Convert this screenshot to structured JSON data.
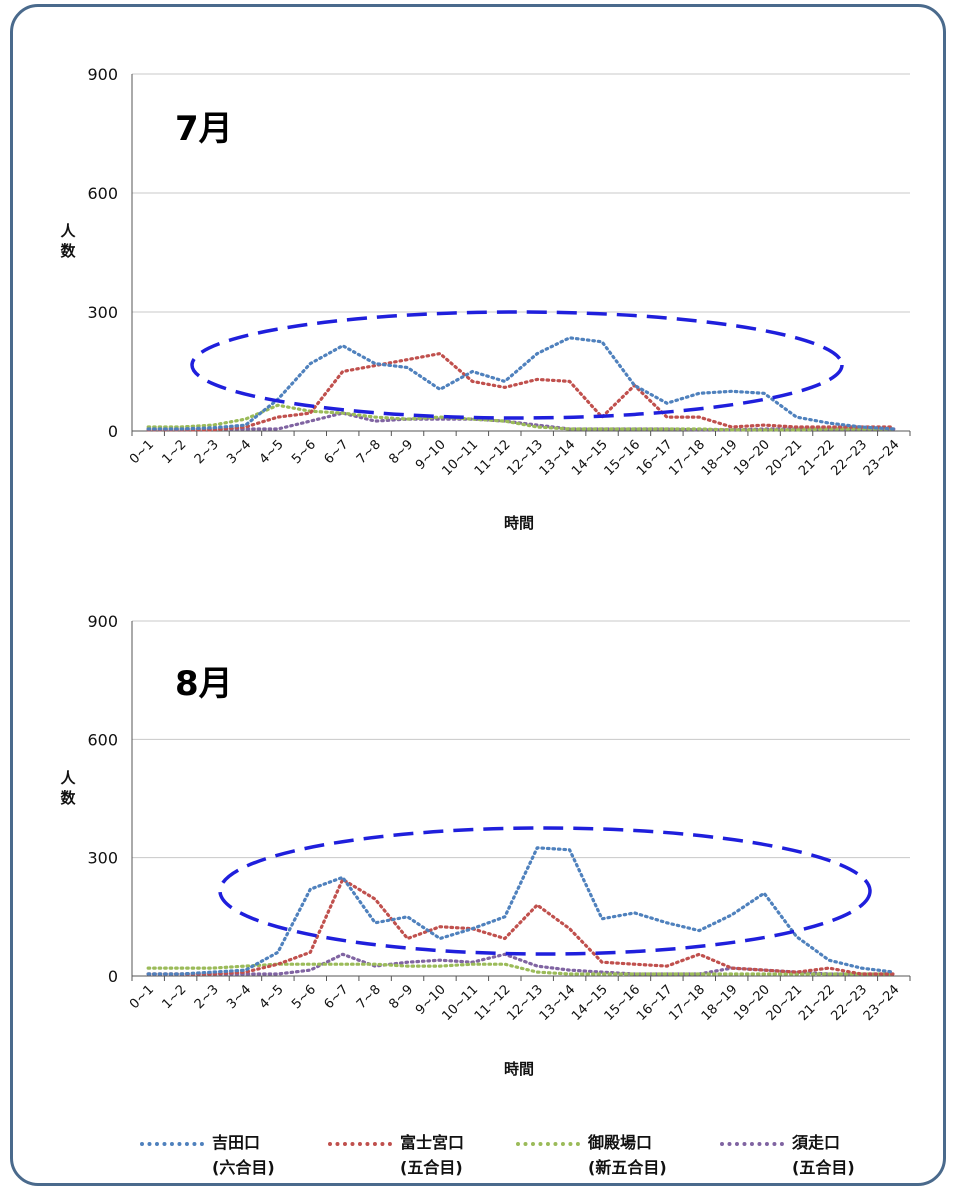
{
  "chart_data": [
    {
      "type": "line",
      "title": "7月",
      "xlabel": "時間",
      "ylabel": "人数",
      "ylim": [
        0,
        900
      ],
      "yticks": [
        0,
        300,
        600,
        900
      ],
      "categories": [
        "0~1",
        "1~2",
        "2~3",
        "3~4",
        "4~5",
        "5~6",
        "6~7",
        "7~8",
        "8~9",
        "9~10",
        "10~11",
        "11~12",
        "12~13",
        "13~14",
        "14~15",
        "15~16",
        "16~17",
        "17~18",
        "18~19",
        "19~20",
        "20~21",
        "21~22",
        "22~23",
        "23~24"
      ],
      "series": [
        {
          "name": "吉田口(六合目)",
          "color": "#4f81bd",
          "values": [
            5,
            5,
            8,
            15,
            80,
            170,
            215,
            170,
            160,
            105,
            150,
            125,
            195,
            235,
            225,
            115,
            70,
            95,
            100,
            95,
            35,
            20,
            10,
            5
          ]
        },
        {
          "name": "富士宮口(五合目)",
          "color": "#c0504d",
          "values": [
            3,
            3,
            3,
            10,
            35,
            45,
            150,
            165,
            180,
            195,
            125,
            110,
            130,
            125,
            35,
            115,
            35,
            35,
            10,
            15,
            10,
            10,
            10,
            10
          ]
        },
        {
          "name": "御殿場口(新五合目)",
          "color": "#9bbb59",
          "values": [
            10,
            10,
            15,
            30,
            65,
            50,
            45,
            35,
            30,
            35,
            30,
            25,
            10,
            5,
            5,
            5,
            5,
            5,
            3,
            3,
            3,
            5,
            5,
            5
          ]
        },
        {
          "name": "須走口(五合目)",
          "color": "#8064a2",
          "values": [
            5,
            5,
            5,
            5,
            5,
            25,
            45,
            25,
            30,
            30,
            30,
            25,
            15,
            5,
            5,
            5,
            5,
            3,
            3,
            5,
            5,
            5,
            5,
            5
          ]
        }
      ]
    },
    {
      "type": "line",
      "title": "8月",
      "xlabel": "時間",
      "ylabel": "人数",
      "ylim": [
        0,
        900
      ],
      "yticks": [
        0,
        300,
        600,
        900
      ],
      "categories": [
        "0~1",
        "1~2",
        "2~3",
        "3~4",
        "4~5",
        "5~6",
        "6~7",
        "7~8",
        "8~9",
        "9~10",
        "10~11",
        "11~12",
        "12~13",
        "13~14",
        "14~15",
        "15~16",
        "16~17",
        "17~18",
        "18~19",
        "19~20",
        "20~21",
        "21~22",
        "22~23",
        "23~24"
      ],
      "series": [
        {
          "name": "吉田口(六合目)",
          "color": "#4f81bd",
          "values": [
            5,
            5,
            10,
            15,
            60,
            220,
            250,
            135,
            150,
            95,
            120,
            150,
            325,
            320,
            145,
            160,
            135,
            115,
            155,
            210,
            100,
            40,
            20,
            10
          ]
        },
        {
          "name": "富士宮口(五合目)",
          "color": "#c0504d",
          "values": [
            5,
            5,
            5,
            10,
            30,
            60,
            245,
            195,
            95,
            125,
            120,
            95,
            180,
            120,
            35,
            30,
            25,
            55,
            20,
            15,
            10,
            20,
            5,
            5
          ]
        },
        {
          "name": "御殿場口(新五合目)",
          "color": "#9bbb59",
          "values": [
            20,
            20,
            20,
            25,
            30,
            30,
            30,
            30,
            25,
            25,
            30,
            30,
            10,
            5,
            5,
            5,
            5,
            5,
            5,
            5,
            5,
            5,
            5,
            5
          ]
        },
        {
          "name": "須走口(五合目)",
          "color": "#8064a2",
          "values": [
            5,
            5,
            5,
            5,
            5,
            15,
            55,
            25,
            35,
            40,
            35,
            55,
            25,
            15,
            10,
            5,
            5,
            5,
            20,
            15,
            10,
            5,
            5,
            5
          ]
        }
      ]
    }
  ],
  "legend": [
    {
      "line1": "吉田口",
      "line2": "(六合目)",
      "color": "#4f81bd"
    },
    {
      "line1": "富士宮口",
      "line2": "(五合目)",
      "color": "#c0504d"
    },
    {
      "line1": "御殿場口",
      "line2": "(新五合目)",
      "color": "#9bbb59"
    },
    {
      "line1": "須走口",
      "line2": "(五合目)",
      "color": "#8064a2"
    }
  ],
  "highlight_color": "#1f1fdc"
}
